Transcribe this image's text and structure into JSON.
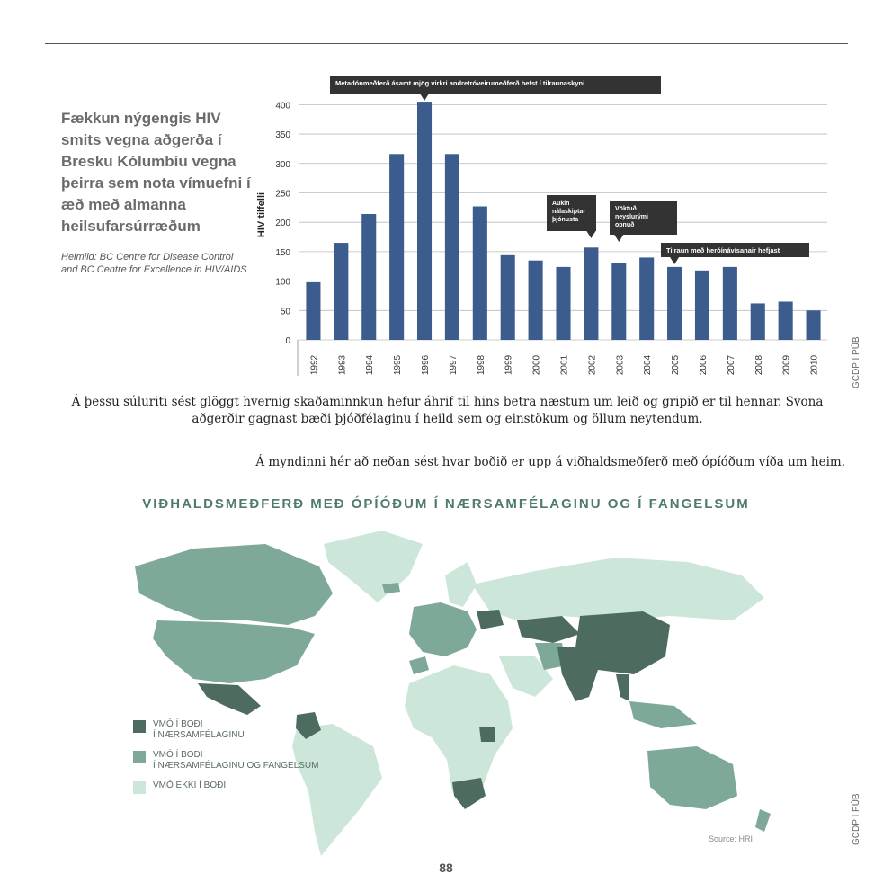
{
  "left_panel": {
    "title": "Fækkun nýgengis HIV smits vegna aðgerða í Bresku Kólumbíu vegna þeirra sem nota vímuefni í æð með almanna heilsufarsúrræðum",
    "source": "Heimild: BC Centre for Disease Control and BC Centre for Excellence in HIV/AIDS"
  },
  "chart_data": {
    "type": "bar",
    "ylabel": "HIV tilfelli",
    "xlabel": "",
    "ylim": [
      0,
      425
    ],
    "yticks": [
      0,
      50,
      100,
      150,
      200,
      250,
      300,
      350,
      400
    ],
    "grid": true,
    "bar_color": "#3b5c8c",
    "categories": [
      "1992",
      "1993",
      "1994",
      "1995",
      "1996",
      "1997",
      "1998",
      "1999",
      "2000",
      "2001",
      "2002",
      "2003",
      "2004",
      "2005",
      "2006",
      "2007",
      "2008",
      "2009",
      "2010"
    ],
    "values": [
      98,
      165,
      214,
      316,
      405,
      316,
      227,
      144,
      135,
      124,
      157,
      130,
      140,
      124,
      118,
      124,
      62,
      65,
      50
    ],
    "annotations": [
      {
        "category": "1996",
        "text": "Metadónmeðferð ásamt mjög virkri andretróveirumeðferð hefst í tilraunaskyni"
      },
      {
        "category": "2002",
        "text": "Aukin nálaskipta- þjónusta"
      },
      {
        "category": "2003",
        "text": "Vöktuð neyslurými opnuð"
      },
      {
        "category": "2005",
        "text": "Tilraun með heróínávísanair hefjast"
      }
    ]
  },
  "credits": {
    "top": "GCDP I PÚB",
    "bottom": "GCDP I PÚB"
  },
  "paragraphs": {
    "p1": "Á þessu súluriti sést glöggt hvernig skaðaminnkun hefur áhrif til hins betra næstum um leið og gripið er til hennar. Svona aðgerðir gagnast bæði þjóðfélaginu í heild sem og einstökum og öllum neytendum.",
    "p2": "Á myndinni hér að neðan sést hvar boðið er upp á viðhaldsmeðferð með ópíóðum víða um heim."
  },
  "map": {
    "title": "VIÐHALDSMEÐFERÐ MEÐ ÓPÍÓÐUM Í NÆRSAMFÉLAGINU OG Í FANGELSUM",
    "source": "Source: HRI",
    "colors": {
      "dark": "#4d6b5e",
      "mid": "#7ea898",
      "light": "#cce6da"
    },
    "legend": [
      {
        "label": "VMÓ Í BOÐI\nÍ NÆRSAMFÉLAGINU",
        "color": "#4d6b5e"
      },
      {
        "label": "VMÓ Í BOÐI\nÍ NÆRSAMFÉLAGINU OG FANGELSUM",
        "color": "#7ea898"
      },
      {
        "label": "VMÓ EKKI Í BOÐI",
        "color": "#cce6da"
      }
    ]
  },
  "page_number": "88"
}
